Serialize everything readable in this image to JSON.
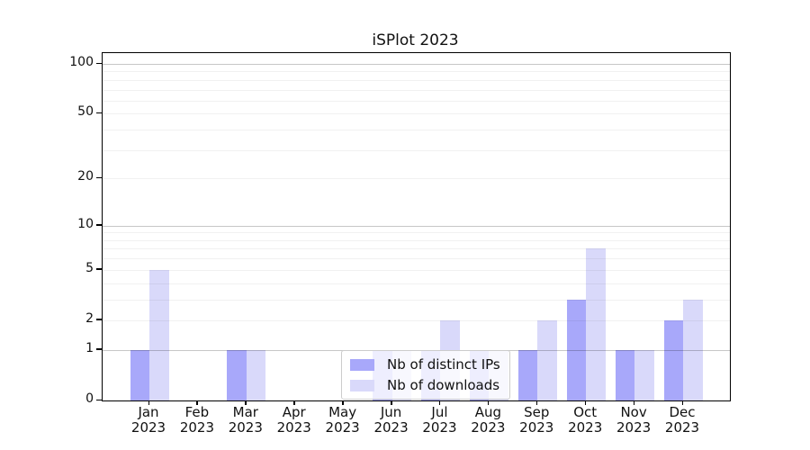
{
  "chart_data": {
    "type": "bar",
    "title": "iSPlot 2023",
    "categories": [
      "Jan",
      "Feb",
      "Mar",
      "Apr",
      "May",
      "Jun",
      "Jul",
      "Aug",
      "Sep",
      "Oct",
      "Nov",
      "Dec"
    ],
    "category_year": "2023",
    "series": [
      {
        "name": "Nb of distinct IPs",
        "color": "#a8a8fa",
        "values": [
          1,
          0,
          1,
          0,
          0,
          1,
          1,
          1,
          1,
          3,
          1,
          2
        ]
      },
      {
        "name": "Nb of downloads",
        "color": "#d9d9fa",
        "values": [
          5,
          0,
          1,
          0,
          0,
          1,
          2,
          1,
          2,
          7,
          1,
          3
        ]
      }
    ],
    "y_axis": {
      "scale": "log1p",
      "tick_labels": [
        100,
        50,
        20,
        10,
        5,
        2,
        1,
        0
      ],
      "major_gridlines": [
        1,
        10,
        100
      ],
      "minor_gridlines": [
        2,
        3,
        4,
        5,
        6,
        7,
        8,
        9,
        20,
        30,
        40,
        50,
        60,
        70,
        80,
        90
      ],
      "ylim": [
        0,
        117
      ]
    },
    "legend": {
      "position": "lower center"
    },
    "grid": true
  }
}
